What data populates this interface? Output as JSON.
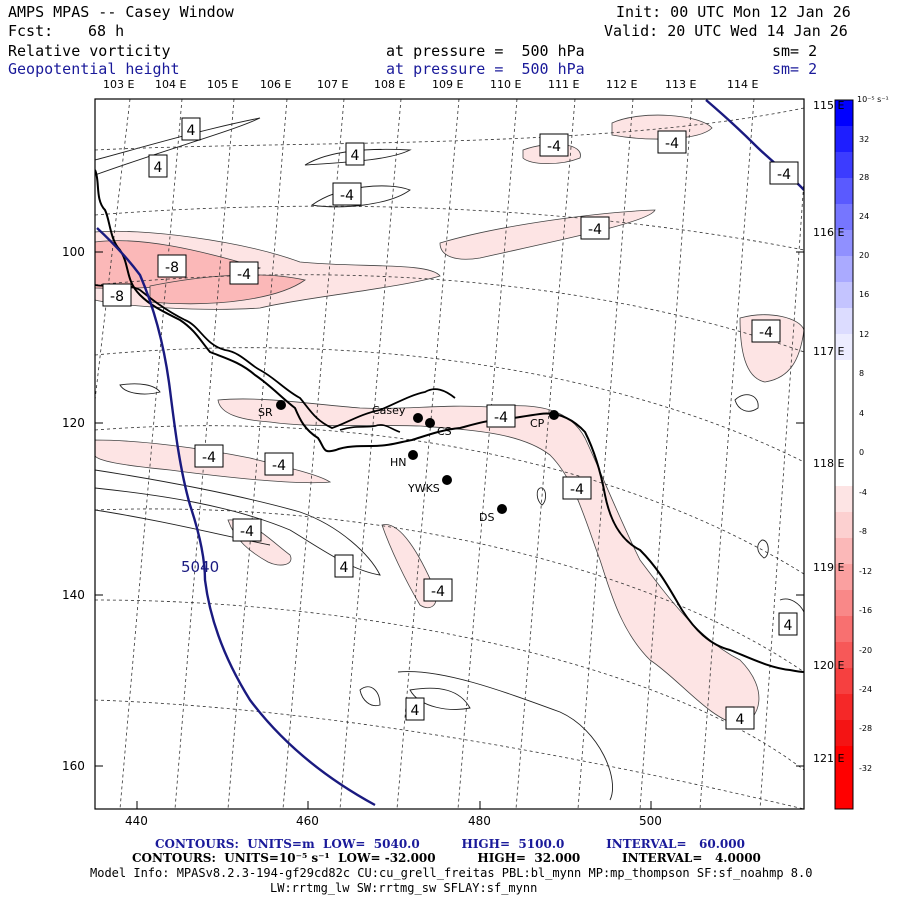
{
  "header": {
    "title": "AMPS MPAS -- Casey Window",
    "init": "Init: 00 UTC Mon 12 Jan 26",
    "fcst_label": "Fcst:",
    "fcst_value": "68 h",
    "valid": "Valid: 20 UTC Wed 14 Jan 26",
    "field1_name": "Relative vorticity",
    "field1_level": "at pressure =  500 hPa",
    "field1_sm": "sm= 2",
    "field2_name": "Geopotential height",
    "field2_level": "at pressure =  500 hPa",
    "field2_sm": "sm= 2"
  },
  "top_longitudes": [
    "103 E",
    "104 E",
    "105 E",
    "106 E",
    "107 E",
    "108 E",
    "109 E",
    "110 E",
    "111 E",
    "112 E",
    "113 E",
    "114 E"
  ],
  "right_longitudes": [
    "115 E",
    "116 E",
    "117 E",
    "118 E",
    "119 E",
    "120 E",
    "121 E"
  ],
  "x_ticks": [
    "440",
    "460",
    "480",
    "500"
  ],
  "y_ticks": [
    "100",
    "120",
    "140",
    "160"
  ],
  "stations": [
    {
      "name": "SR"
    },
    {
      "name": "Casey"
    },
    {
      "name": "CS"
    },
    {
      "name": "HN"
    },
    {
      "name": "YWKS"
    },
    {
      "name": "DS"
    },
    {
      "name": "CP"
    }
  ],
  "contour_labels": [
    "4",
    "4",
    "4",
    "-4",
    "-4",
    "-4",
    "-4",
    "-4",
    "-8",
    "-8",
    "-4",
    "-4",
    "-4",
    "-4",
    "-4",
    "-4",
    "4",
    "4",
    "-4",
    "4",
    "-4",
    "4",
    "-4",
    "-4"
  ],
  "height_label": "5040",
  "colorbar": {
    "unit": "10⁻⁵ s⁻¹",
    "labels": [
      "32",
      "28",
      "24",
      "20",
      "16",
      "12",
      "8",
      "4",
      "0",
      "-4",
      "-8",
      "-12",
      "-16",
      "-20",
      "-24",
      "-28",
      "-32"
    ],
    "colors": [
      "#0000ff",
      "#2a2aff",
      "#4d4dff",
      "#6a6aff",
      "#8a8aff",
      "#a8a8ff",
      "#c8c8ff",
      "#ffffff",
      "#ffffff",
      "#ffffff",
      "#fde4e4",
      "#fcc4c4",
      "#fba0a0",
      "#f97a7a",
      "#f75252",
      "#f52a2a",
      "#ff0000"
    ]
  },
  "footer": {
    "contours1": "CONTOURS:  UNITS=m  LOW=  5040.0          HIGH=  5100.0          INTERVAL=   60.000",
    "contours2": "CONTOURS:  UNITS=10⁻⁵ s⁻¹  LOW= -32.000          HIGH=  32.000          INTERVAL=   4.0000",
    "model_info": "Model Info: MPASv8.2.3-194-gf29cd82c CU:cu_grell_freitas PBL:bl_mynn MP:mp_thompson SF:sf_noahmp 8.0",
    "model_info2": "LW:rrtmg_lw SW:rrtmg_sw SFLAY:sf_mynn"
  }
}
